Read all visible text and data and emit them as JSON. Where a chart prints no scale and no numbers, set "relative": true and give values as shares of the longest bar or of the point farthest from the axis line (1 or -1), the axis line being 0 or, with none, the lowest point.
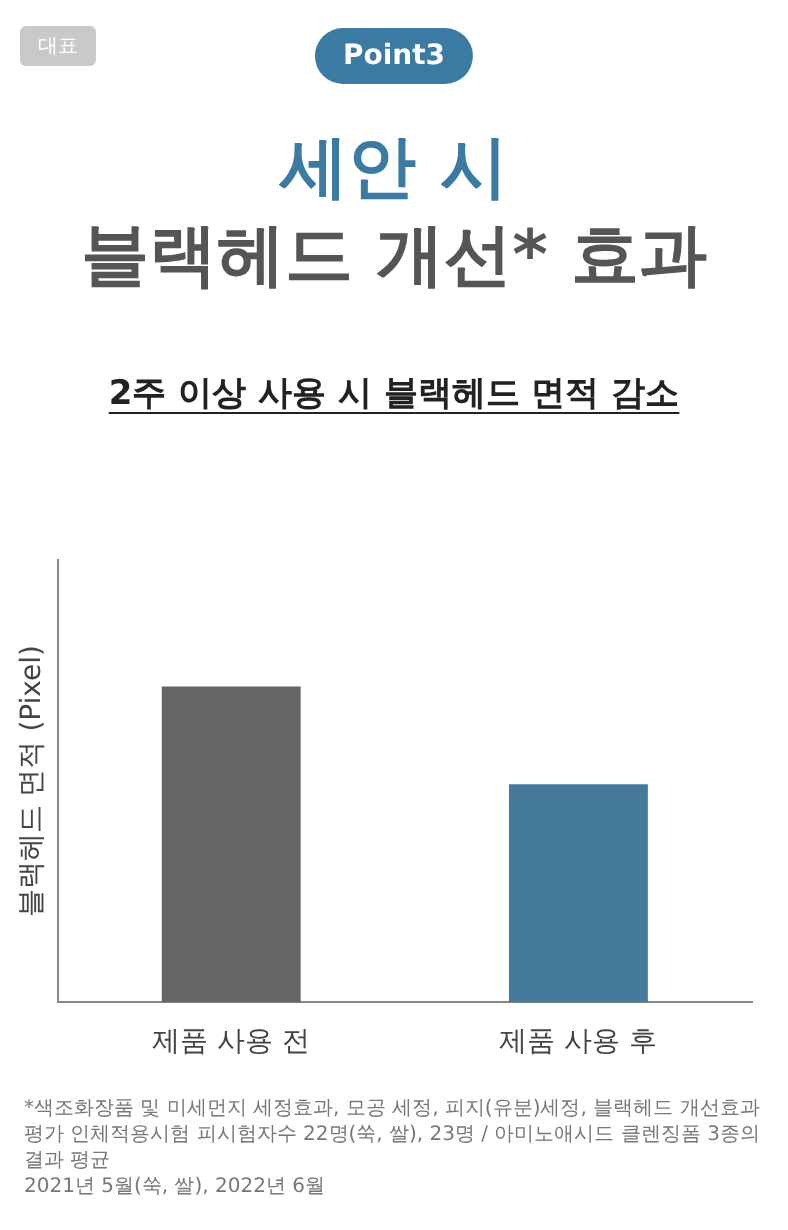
{
  "chart_data": {
    "type": "bar",
    "title": "세안 시\n블랙헤드 개선* 효과",
    "subtitle": "2주 이상 사용 시 블랙헤드 면적 감소",
    "ylabel": "블랙헤드 면적 (Pixel)",
    "categories": [
      "제품 사용 전",
      "제품 사용 후"
    ],
    "values": [
      1,
      0.69
    ],
    "colors": [
      "#666566",
      "#467a9c"
    ],
    "relative": true,
    "grid": false,
    "legend": false,
    "annotations": [
      "대표",
      "Point3",
      "*색조화장품 및 미세먼지 세정효과, 모공 세정, 피지(유분)세정, 블랙헤드 개선효과 평가 인체적용시험 피시험자수 22명(쑥, 쌀), 23명 / 아미노애시드 클렌징폼 3종의 결과 평균",
      "2021년 5월(쑥, 쌀), 2022년 6월"
    ]
  }
}
